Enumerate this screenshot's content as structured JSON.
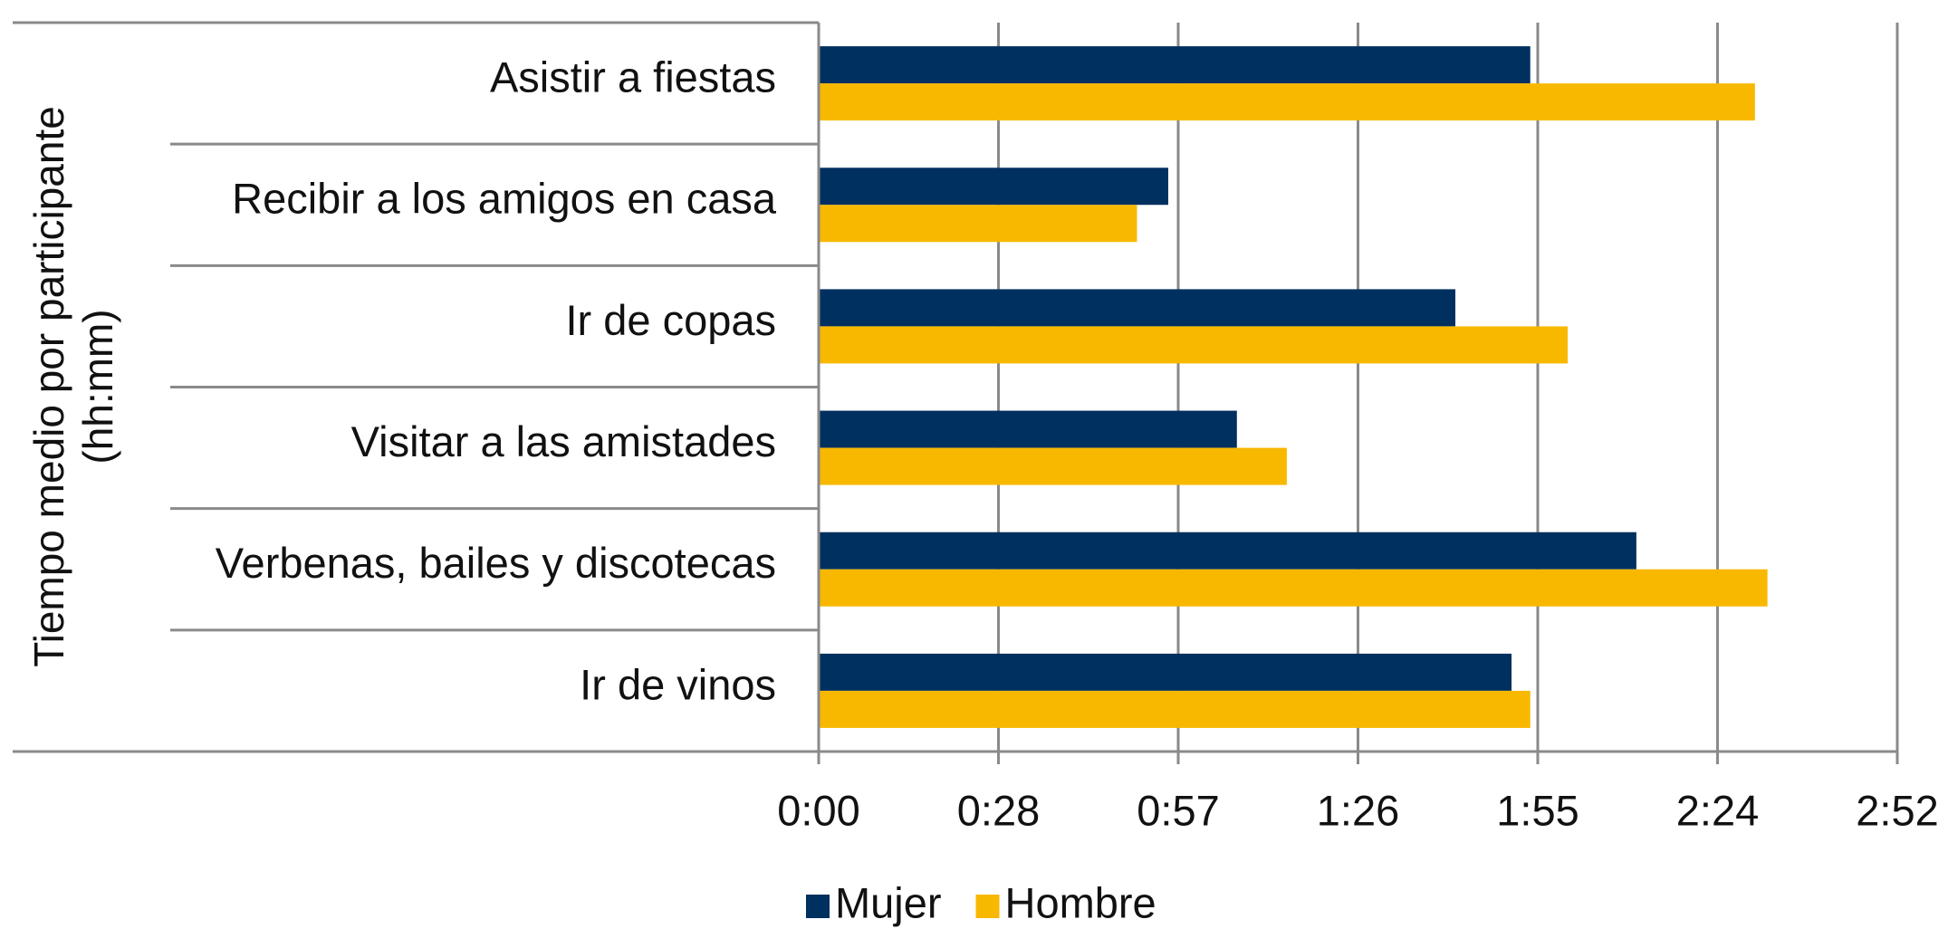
{
  "chart_data": {
    "type": "bar",
    "orientation": "horizontal",
    "y_label": [
      "Tiempo medio por participante",
      "(hh:mm)"
    ],
    "categories": [
      "Asistir a fiestas",
      "Recibir a los amigos en casa",
      "Ir de copas",
      "Visitar a las amistades",
      "Verbenas, bailes y discotecas",
      "Ir de vinos"
    ],
    "series": [
      {
        "name": "Mujer",
        "color": "#003060",
        "values": [
          114,
          56,
          102,
          67,
          131,
          111
        ]
      },
      {
        "name": "Hombre",
        "color": "#f8b800",
        "values": [
          150,
          51,
          120,
          75,
          152,
          114
        ]
      }
    ],
    "xlim": [
      0,
      172.8
    ],
    "xticks": [
      {
        "value": 0,
        "label": "0:00"
      },
      {
        "value": 28.8,
        "label": "0:28"
      },
      {
        "value": 57.6,
        "label": "0:57"
      },
      {
        "value": 86.4,
        "label": "1:26"
      },
      {
        "value": 115.2,
        "label": "1:55"
      },
      {
        "value": 144,
        "label": "2:24"
      },
      {
        "value": 172.8,
        "label": "2:52"
      }
    ],
    "grid": true,
    "legend": "bottom"
  }
}
